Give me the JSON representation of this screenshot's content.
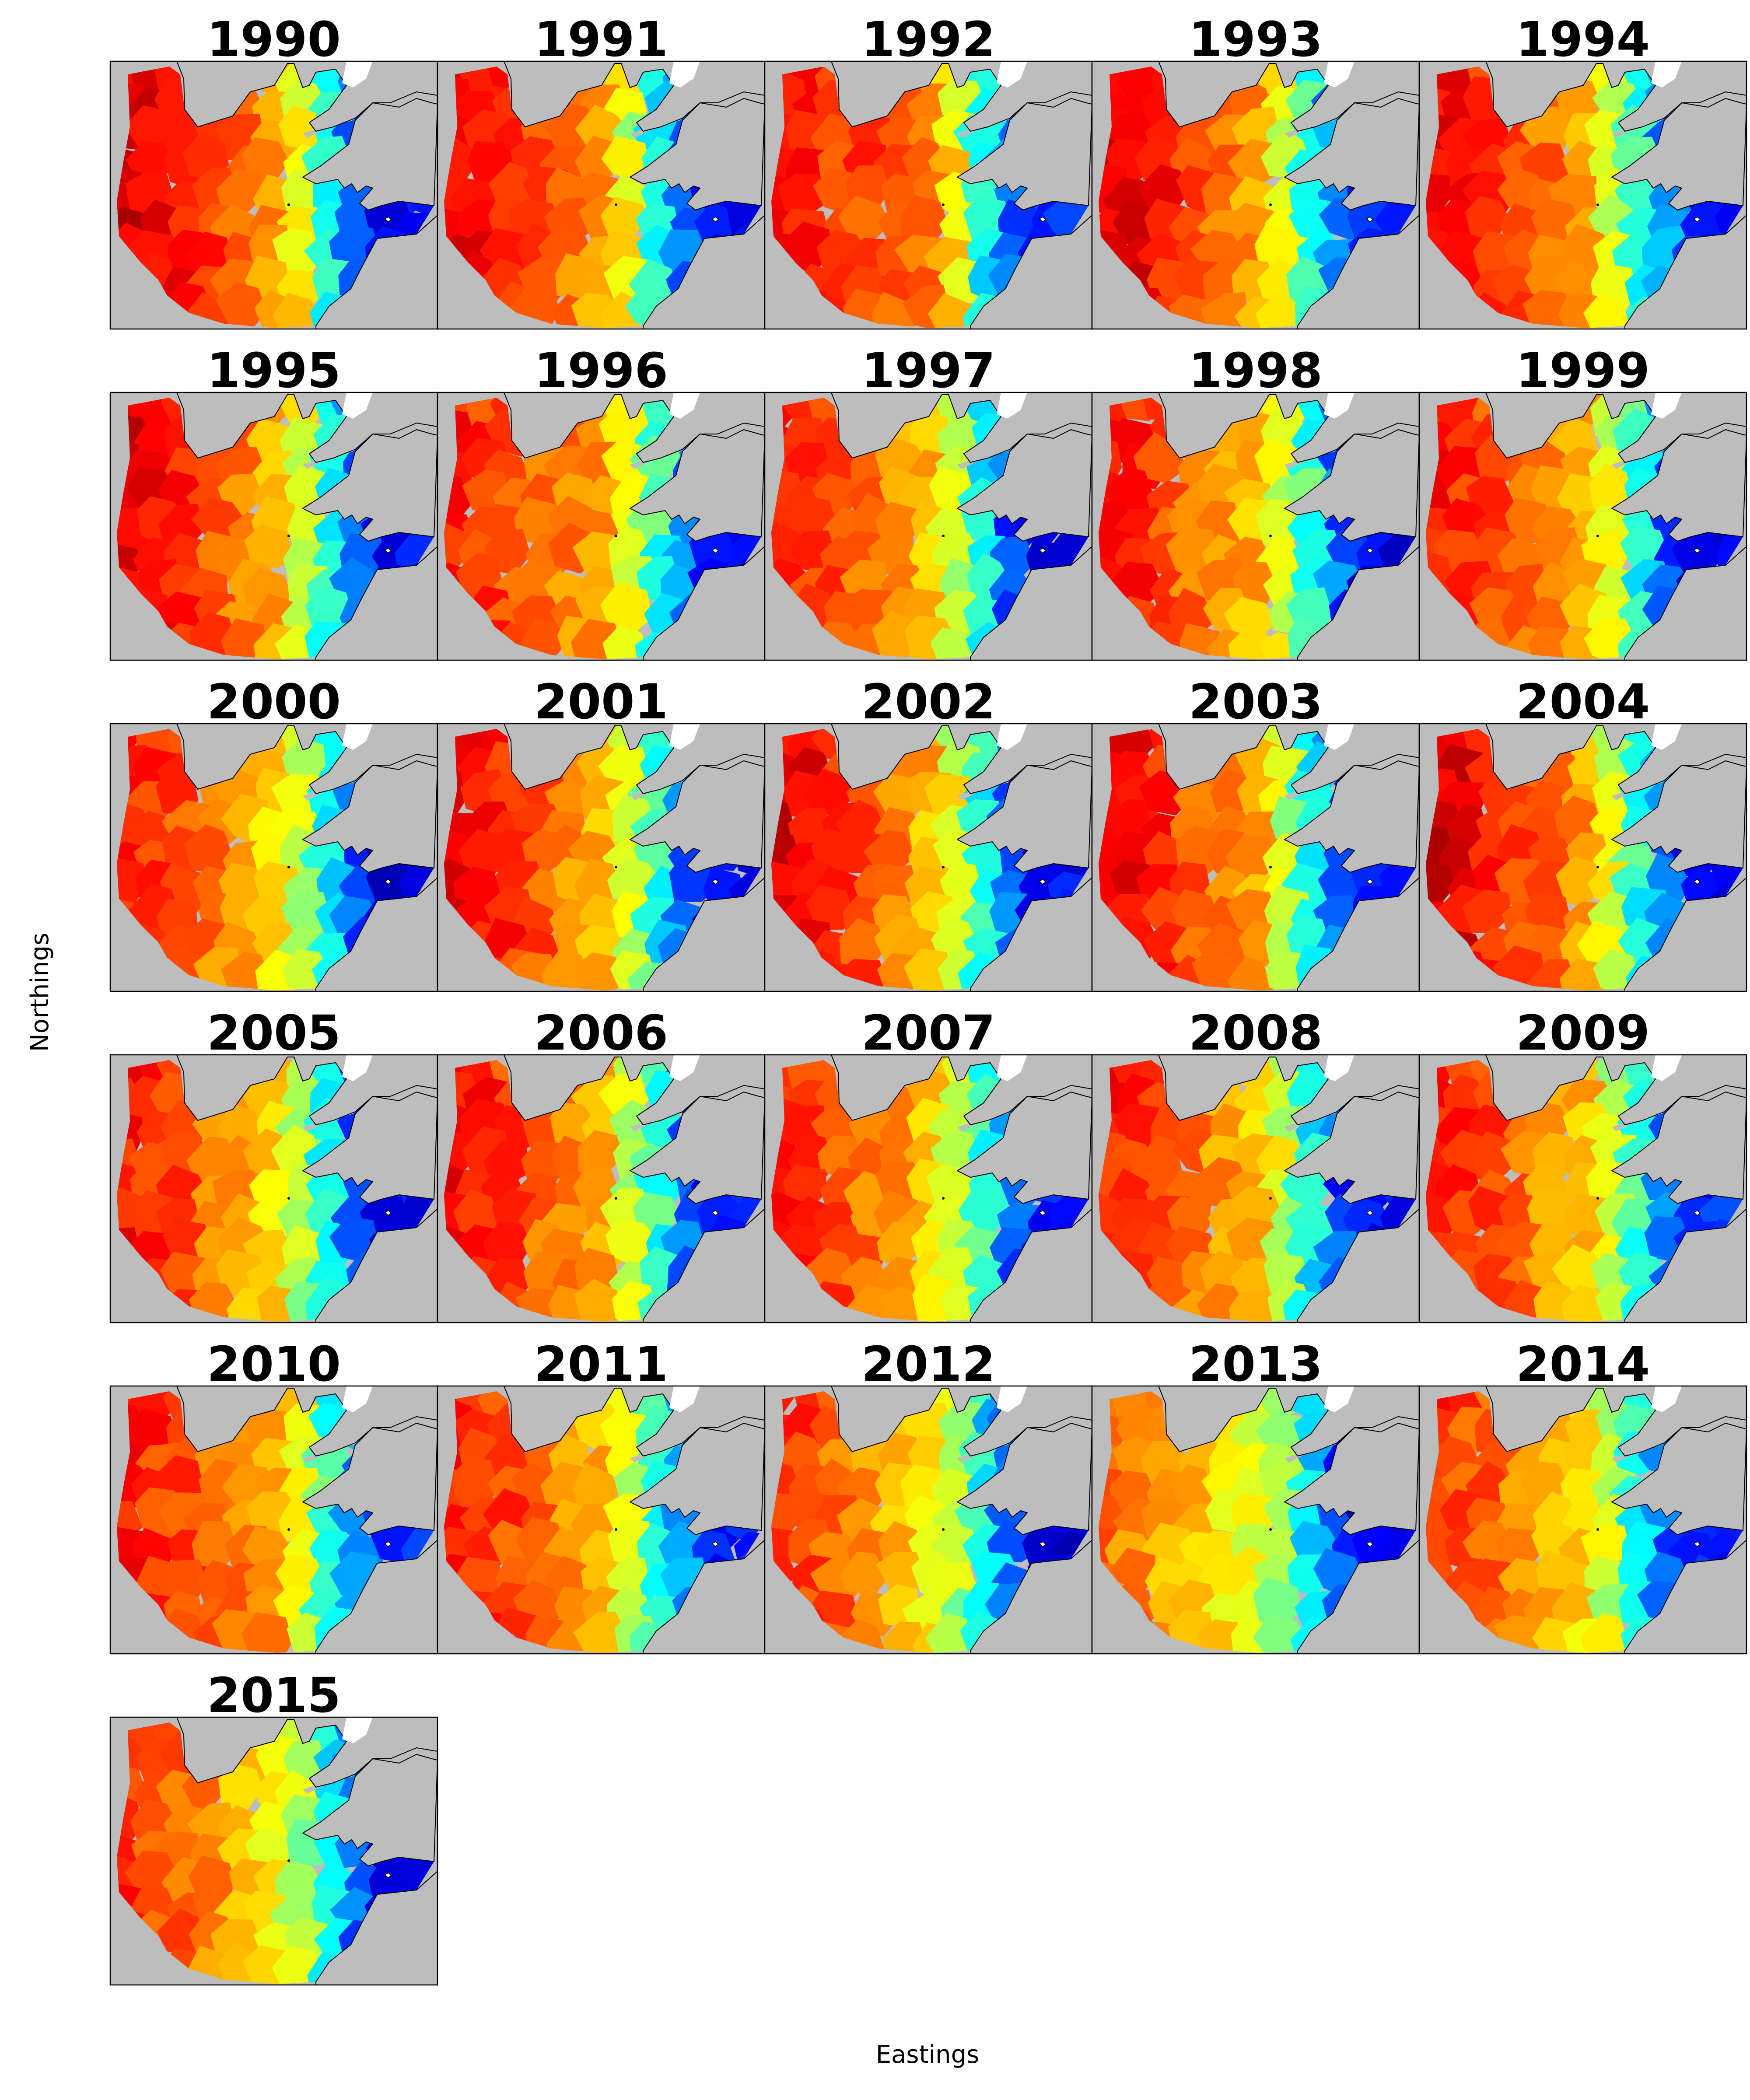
{
  "figure": {
    "xlabel": "Eastings",
    "ylabel": "Northings"
  },
  "colors": {
    "land": "#bdbdbd",
    "frame": "#000000",
    "coast": "#000000",
    "colormap": "jet"
  },
  "chart_data": {
    "type": "heatmap",
    "panel_type": "small-multiples voronoi map",
    "xlabel": "Eastings",
    "ylabel": "Northings",
    "grid": false,
    "legend": "none",
    "scale_note": "relative values 0 (dark blue) to 1 (red), jet colormap, estimated visually",
    "panels": [
      {
        "year": "1990",
        "west": 0.88,
        "central": 0.7,
        "east_strait": 0.4,
        "east": 0.12
      },
      {
        "year": "1991",
        "west": 0.86,
        "central": 0.7,
        "east_strait": 0.4,
        "east": 0.13
      },
      {
        "year": "1992",
        "west": 0.84,
        "central": 0.76,
        "east_strait": 0.38,
        "east": 0.16
      },
      {
        "year": "1993",
        "west": 0.88,
        "central": 0.7,
        "east_strait": 0.42,
        "east": 0.14
      },
      {
        "year": "1994",
        "west": 0.85,
        "central": 0.7,
        "east_strait": 0.42,
        "east": 0.14
      },
      {
        "year": "1995",
        "west": 0.87,
        "central": 0.69,
        "east_strait": 0.4,
        "east": 0.12
      },
      {
        "year": "1996",
        "west": 0.82,
        "central": 0.71,
        "east_strait": 0.42,
        "east": 0.12
      },
      {
        "year": "1997",
        "west": 0.82,
        "central": 0.68,
        "east_strait": 0.4,
        "east": 0.09
      },
      {
        "year": "1998",
        "west": 0.83,
        "central": 0.68,
        "east_strait": 0.42,
        "east": 0.1
      },
      {
        "year": "1999",
        "west": 0.82,
        "central": 0.68,
        "east_strait": 0.42,
        "east": 0.1
      },
      {
        "year": "2000",
        "west": 0.82,
        "central": 0.64,
        "east_strait": 0.38,
        "east": 0.09
      },
      {
        "year": "2001",
        "west": 0.86,
        "central": 0.68,
        "east_strait": 0.4,
        "east": 0.12
      },
      {
        "year": "2002",
        "west": 0.87,
        "central": 0.68,
        "east_strait": 0.4,
        "east": 0.12
      },
      {
        "year": "2003",
        "west": 0.86,
        "central": 0.68,
        "east_strait": 0.4,
        "east": 0.12
      },
      {
        "year": "2004",
        "west": 0.88,
        "central": 0.7,
        "east_strait": 0.4,
        "east": 0.13
      },
      {
        "year": "2005",
        "west": 0.82,
        "central": 0.64,
        "east_strait": 0.38,
        "east": 0.12
      },
      {
        "year": "2006",
        "west": 0.84,
        "central": 0.68,
        "east_strait": 0.42,
        "east": 0.13
      },
      {
        "year": "2007",
        "west": 0.82,
        "central": 0.66,
        "east_strait": 0.42,
        "east": 0.13
      },
      {
        "year": "2008",
        "west": 0.82,
        "central": 0.66,
        "east_strait": 0.4,
        "east": 0.12
      },
      {
        "year": "2009",
        "west": 0.82,
        "central": 0.68,
        "east_strait": 0.42,
        "east": 0.16
      },
      {
        "year": "2010",
        "west": 0.82,
        "central": 0.72,
        "east_strait": 0.42,
        "east": 0.18
      },
      {
        "year": "2011",
        "west": 0.83,
        "central": 0.68,
        "east_strait": 0.42,
        "east": 0.15
      },
      {
        "year": "2012",
        "west": 0.8,
        "central": 0.62,
        "east_strait": 0.38,
        "east": 0.09
      },
      {
        "year": "2013",
        "west": 0.74,
        "central": 0.58,
        "east_strait": 0.36,
        "east": 0.08
      },
      {
        "year": "2014",
        "west": 0.8,
        "central": 0.64,
        "east_strait": 0.4,
        "east": 0.14
      },
      {
        "year": "2015",
        "west": 0.8,
        "central": 0.62,
        "east_strait": 0.38,
        "east": 0.12
      }
    ]
  }
}
